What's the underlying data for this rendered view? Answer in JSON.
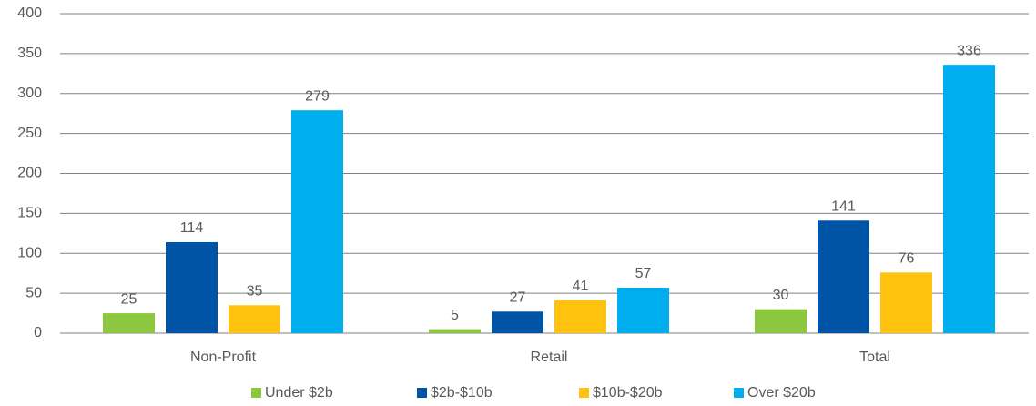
{
  "chart_data": {
    "type": "bar",
    "categories": [
      "Non-Profit",
      "Retail",
      "Total"
    ],
    "series": [
      {
        "name": "Under $2b",
        "color": "#8dc63f",
        "values": [
          25,
          5,
          30
        ]
      },
      {
        "name": "$2b-$10b",
        "color": "#0054a6",
        "values": [
          114,
          27,
          141
        ]
      },
      {
        "name": "$10b-$20b",
        "color": "#ffc20e",
        "values": [
          35,
          41,
          76
        ]
      },
      {
        "name": "Over $20b",
        "color": "#00aeef",
        "values": [
          279,
          57,
          336
        ]
      }
    ],
    "ylim": [
      0,
      400
    ],
    "yticks": [
      0,
      50,
      100,
      150,
      200,
      250,
      300,
      350,
      400
    ],
    "grid": true,
    "legend": "bottom"
  }
}
